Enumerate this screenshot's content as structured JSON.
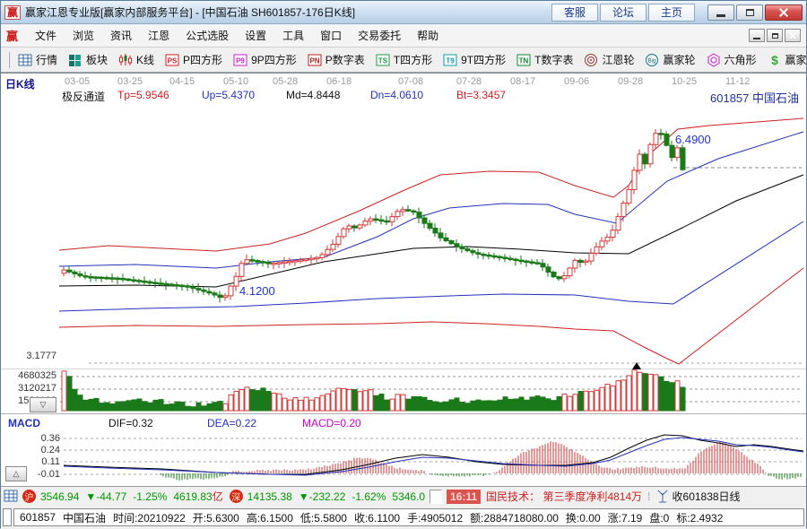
{
  "colors": {
    "up_red": "#d23b3b",
    "down_green": "#1a7a1a",
    "channel_red": "#cc2222",
    "channel_blue": "#2233bb",
    "channel_black": "#000000",
    "grid_gray": "#aaaaaa",
    "macd_magenta": "#cc00cc",
    "status_green": "#009900"
  },
  "window": {
    "logo_char": "赢",
    "title": "赢家江恩专业版[赢家内部服务平台] - [中国石油  SH601857-176日K线]",
    "buttons": [
      "客服",
      "论坛",
      "主页"
    ]
  },
  "menu": {
    "items": [
      "文件",
      "浏览",
      "资讯",
      "江恩",
      "公式选股",
      "设置",
      "工具",
      "窗口",
      "交易委托",
      "帮助"
    ]
  },
  "toolbar": {
    "items": [
      {
        "label": "行情",
        "icon": "quote-grid-icon"
      },
      {
        "label": "板块",
        "icon": "blocks-icon"
      },
      {
        "label": "K线",
        "icon": "kline-icon"
      },
      {
        "label": "P四方形",
        "icon": "ps-square-icon",
        "glyph": "PS",
        "color": "#cc2222"
      },
      {
        "label": "9P四方形",
        "icon": "p9-square-icon",
        "glyph": "P9",
        "color": "#cc22cc"
      },
      {
        "label": "P数字表",
        "icon": "pn-table-icon",
        "glyph": "PN",
        "color": "#bb2222"
      },
      {
        "label": "T四方形",
        "icon": "ts-square-icon",
        "glyph": "TS",
        "color": "#229944"
      },
      {
        "label": "9T四方形",
        "icon": "t9-square-icon",
        "glyph": "T9",
        "color": "#1199aa"
      },
      {
        "label": "T数字表",
        "icon": "tn-table-icon",
        "glyph": "TN",
        "color": "#118833"
      },
      {
        "label": "江恩轮",
        "icon": "gann-wheel-icon",
        "color": "#993333"
      },
      {
        "label": "赢家轮",
        "icon": "winner-wheel-icon",
        "glyph": "Big",
        "color": "#117788"
      },
      {
        "label": "六角形",
        "icon": "hexagon-icon",
        "color": "#cc22cc"
      },
      {
        "label": "赢家服务",
        "icon": "dollar-icon",
        "glyph": "$",
        "color": "#33aa33"
      }
    ]
  },
  "chart": {
    "mode_label": "日K线",
    "dates": [
      "03-05",
      "03-25",
      "04-15",
      "05-10",
      "05-28",
      "06-18",
      "07-08",
      "07-28",
      "08-17",
      "09-06",
      "09-28",
      "10-25",
      "11-12"
    ],
    "date_xs": [
      88,
      147,
      205,
      265,
      320,
      380,
      460,
      525,
      585,
      645,
      705,
      765,
      825
    ],
    "indicator": {
      "name": "极反通道",
      "tp": "Tp=5.9546",
      "up": "Up=5.4370",
      "md": "Md=4.8448",
      "dn": "Dn=4.0610",
      "bt": "Bt=3.3457"
    },
    "symbol_label": "601857  中国石油",
    "price_labels": {
      "last": "6.4900",
      "mid": "4.1200",
      "low": "3.1777"
    },
    "volume_scale": [
      "4680325",
      "3120217",
      "1560108"
    ],
    "macd": {
      "title": "MACD",
      "dif": "DIF=0.32",
      "dea": "DEA=0.22",
      "macd": "MACD=0.20",
      "scale": [
        "0.36",
        "0.24",
        "0.11",
        "-0.01"
      ]
    },
    "series": {
      "price_keypoints": [
        [
          70,
          4.55
        ],
        [
          90,
          4.45
        ],
        [
          130,
          4.42
        ],
        [
          170,
          4.35
        ],
        [
          205,
          4.3
        ],
        [
          235,
          4.18
        ],
        [
          248,
          4.1
        ],
        [
          262,
          4.45
        ],
        [
          270,
          4.72
        ],
        [
          300,
          4.65
        ],
        [
          330,
          4.7
        ],
        [
          355,
          4.75
        ],
        [
          370,
          4.95
        ],
        [
          385,
          5.25
        ],
        [
          395,
          5.2
        ],
        [
          410,
          5.35
        ],
        [
          430,
          5.3
        ],
        [
          445,
          5.5
        ],
        [
          460,
          5.45
        ],
        [
          470,
          5.3
        ],
        [
          490,
          5.05
        ],
        [
          510,
          4.9
        ],
        [
          530,
          4.8
        ],
        [
          555,
          4.75
        ],
        [
          575,
          4.7
        ],
        [
          600,
          4.65
        ],
        [
          615,
          4.45
        ],
        [
          625,
          4.4
        ],
        [
          640,
          4.7
        ],
        [
          650,
          4.65
        ],
        [
          660,
          4.85
        ],
        [
          670,
          5.0
        ],
        [
          680,
          5.1
        ],
        [
          690,
          5.45
        ],
        [
          700,
          5.8
        ],
        [
          706,
          6.1
        ],
        [
          712,
          6.35
        ],
        [
          718,
          6.2
        ],
        [
          725,
          6.55
        ],
        [
          733,
          6.75
        ],
        [
          740,
          6.55
        ],
        [
          748,
          6.3
        ],
        [
          754,
          6.45
        ],
        [
          760,
          6.11
        ]
      ],
      "channels": {
        "tp": [
          [
            65,
            197
          ],
          [
            120,
            192
          ],
          [
            200,
            196
          ],
          [
            240,
            198
          ],
          [
            300,
            190
          ],
          [
            340,
            178
          ],
          [
            400,
            153
          ],
          [
            450,
            130
          ],
          [
            490,
            113
          ],
          [
            545,
            109
          ],
          [
            600,
            110
          ],
          [
            640,
            125
          ],
          [
            683,
            138
          ],
          [
            700,
            125
          ],
          [
            720,
            93
          ],
          [
            755,
            62
          ],
          [
            790,
            58
          ],
          [
            895,
            50
          ]
        ],
        "up": [
          [
            65,
            215
          ],
          [
            150,
            213
          ],
          [
            240,
            217
          ],
          [
            300,
            210
          ],
          [
            360,
            205
          ],
          [
            420,
            182
          ],
          [
            460,
            162
          ],
          [
            500,
            150
          ],
          [
            560,
            145
          ],
          [
            610,
            146
          ],
          [
            640,
            157
          ],
          [
            687,
            167
          ],
          [
            743,
            120
          ],
          [
            800,
            95
          ],
          [
            895,
            65
          ]
        ],
        "md": [
          [
            65,
            237
          ],
          [
            150,
            236
          ],
          [
            240,
            238
          ],
          [
            360,
            210
          ],
          [
            460,
            195
          ],
          [
            520,
            193
          ],
          [
            580,
            196
          ],
          [
            640,
            200
          ],
          [
            700,
            201
          ],
          [
            760,
            172
          ],
          [
            820,
            142
          ],
          [
            895,
            113
          ]
        ],
        "dn": [
          [
            65,
            265
          ],
          [
            160,
            262
          ],
          [
            260,
            260
          ],
          [
            340,
            256
          ],
          [
            420,
            251
          ],
          [
            500,
            248
          ],
          [
            560,
            246
          ],
          [
            640,
            247
          ],
          [
            700,
            254
          ],
          [
            750,
            257
          ],
          [
            895,
            165
          ]
        ],
        "bt": [
          [
            65,
            283
          ],
          [
            150,
            281
          ],
          [
            240,
            282
          ],
          [
            340,
            280
          ],
          [
            420,
            279
          ],
          [
            480,
            277
          ],
          [
            540,
            279
          ],
          [
            600,
            282
          ],
          [
            640,
            285
          ],
          [
            683,
            287
          ],
          [
            717,
            305
          ],
          [
            743,
            318
          ],
          [
            756,
            324
          ],
          [
            895,
            217
          ]
        ]
      },
      "volume_env": [
        [
          70,
          42
        ],
        [
          76,
          38
        ],
        [
          84,
          16
        ],
        [
          100,
          12
        ],
        [
          130,
          10
        ],
        [
          160,
          12
        ],
        [
          200,
          7
        ],
        [
          230,
          6
        ],
        [
          250,
          9
        ],
        [
          258,
          22
        ],
        [
          266,
          26
        ],
        [
          280,
          24
        ],
        [
          300,
          22
        ],
        [
          320,
          14
        ],
        [
          340,
          12
        ],
        [
          360,
          18
        ],
        [
          380,
          26
        ],
        [
          400,
          24
        ],
        [
          415,
          20
        ],
        [
          430,
          14
        ],
        [
          450,
          16
        ],
        [
          470,
          13
        ],
        [
          490,
          10
        ],
        [
          510,
          12
        ],
        [
          530,
          10
        ],
        [
          550,
          12
        ],
        [
          570,
          16
        ],
        [
          590,
          14
        ],
        [
          610,
          13
        ],
        [
          625,
          15
        ],
        [
          640,
          18
        ],
        [
          655,
          20
        ],
        [
          668,
          24
        ],
        [
          680,
          28
        ],
        [
          690,
          32
        ],
        [
          700,
          40
        ],
        [
          708,
          46
        ],
        [
          715,
          44
        ],
        [
          722,
          38
        ],
        [
          730,
          42
        ],
        [
          738,
          36
        ],
        [
          745,
          30
        ],
        [
          752,
          34
        ],
        [
          758,
          28
        ]
      ],
      "macd_dif": [
        [
          70,
          437
        ],
        [
          120,
          439
        ],
        [
          180,
          441
        ],
        [
          240,
          445
        ],
        [
          300,
          447
        ],
        [
          340,
          447
        ],
        [
          380,
          442
        ],
        [
          410,
          436
        ],
        [
          440,
          429
        ],
        [
          470,
          425
        ],
        [
          500,
          428
        ],
        [
          530,
          433
        ],
        [
          560,
          436
        ],
        [
          600,
          437
        ],
        [
          630,
          437
        ],
        [
          660,
          434
        ],
        [
          680,
          428
        ],
        [
          700,
          418
        ],
        [
          720,
          409
        ],
        [
          740,
          403
        ],
        [
          760,
          404
        ],
        [
          780,
          409
        ],
        [
          800,
          412
        ],
        [
          820,
          416
        ],
        [
          840,
          414
        ],
        [
          860,
          416
        ],
        [
          880,
          419
        ],
        [
          895,
          421
        ]
      ],
      "macd_dea": [
        [
          70,
          438
        ],
        [
          120,
          440
        ],
        [
          180,
          442
        ],
        [
          240,
          445
        ],
        [
          300,
          447
        ],
        [
          340,
          448
        ],
        [
          380,
          444
        ],
        [
          410,
          439
        ],
        [
          440,
          433
        ],
        [
          470,
          428
        ],
        [
          500,
          429
        ],
        [
          530,
          432
        ],
        [
          560,
          435
        ],
        [
          600,
          437
        ],
        [
          630,
          438
        ],
        [
          660,
          435
        ],
        [
          680,
          431
        ],
        [
          700,
          423
        ],
        [
          720,
          415
        ],
        [
          740,
          408
        ],
        [
          760,
          406
        ],
        [
          780,
          408
        ],
        [
          800,
          410
        ],
        [
          820,
          414
        ],
        [
          840,
          415
        ],
        [
          860,
          417
        ],
        [
          880,
          420
        ],
        [
          895,
          422
        ]
      ],
      "macd_hist": [
        [
          176,
          0
        ],
        [
          185,
          -5
        ],
        [
          200,
          -7
        ],
        [
          230,
          -6
        ],
        [
          252,
          -3
        ],
        [
          256,
          2
        ],
        [
          280,
          3
        ],
        [
          310,
          4
        ],
        [
          340,
          4
        ],
        [
          360,
          8
        ],
        [
          380,
          12
        ],
        [
          400,
          18
        ],
        [
          415,
          16
        ],
        [
          430,
          10
        ],
        [
          442,
          6
        ],
        [
          455,
          4
        ],
        [
          470,
          3
        ],
        [
          482,
          -2
        ],
        [
          510,
          -3
        ],
        [
          540,
          -2
        ],
        [
          554,
          2
        ],
        [
          565,
          12
        ],
        [
          580,
          22
        ],
        [
          600,
          30
        ],
        [
          615,
          36
        ],
        [
          630,
          30
        ],
        [
          645,
          22
        ],
        [
          660,
          12
        ],
        [
          670,
          6
        ],
        [
          685,
          5
        ],
        [
          700,
          6
        ],
        [
          715,
          7
        ],
        [
          730,
          7
        ],
        [
          745,
          5
        ],
        [
          760,
          5
        ],
        [
          768,
          10
        ],
        [
          780,
          24
        ],
        [
          795,
          32
        ],
        [
          805,
          36
        ],
        [
          815,
          30
        ],
        [
          825,
          24
        ],
        [
          835,
          16
        ],
        [
          845,
          10
        ],
        [
          852,
          2
        ],
        [
          856,
          -3
        ],
        [
          870,
          -6
        ],
        [
          885,
          -5
        ],
        [
          893,
          -4
        ]
      ]
    }
  },
  "statusbar": {
    "sh_label": "沪",
    "sh_index": "3546.94",
    "sh_change": "▼-44.77",
    "sh_pct": "-1.25%",
    "sh_vol": "4619.83",
    "sh_vol_unit": "亿",
    "sz_label": "深",
    "sz_index": "14135.38",
    "sz_change": "▼-232.22",
    "sz_pct": "-1.62%",
    "sz_vol": "5346.0",
    "news_time": "16:11",
    "news_text": "国民技术： 第三季度净利4814万",
    "ticker_label": "收601838日线"
  },
  "infobar": {
    "code": "601857",
    "name": "中国石油",
    "fields": [
      {
        "k": "时间:",
        "v": "20210922"
      },
      {
        "k": "开:",
        "v": "5.6300"
      },
      {
        "k": "高:",
        "v": "6.1500"
      },
      {
        "k": "低:",
        "v": "5.5800"
      },
      {
        "k": "收:",
        "v": "6.1100"
      },
      {
        "k": "手:",
        "v": "4905012"
      },
      {
        "k": "额:",
        "v": "2884718080.00"
      },
      {
        "k": "换:",
        "v": "0.00"
      },
      {
        "k": "涨:",
        "v": "7.19"
      },
      {
        "k": "盘:",
        "v": "0"
      },
      {
        "k": "标:",
        "v": "2.4932"
      }
    ]
  }
}
